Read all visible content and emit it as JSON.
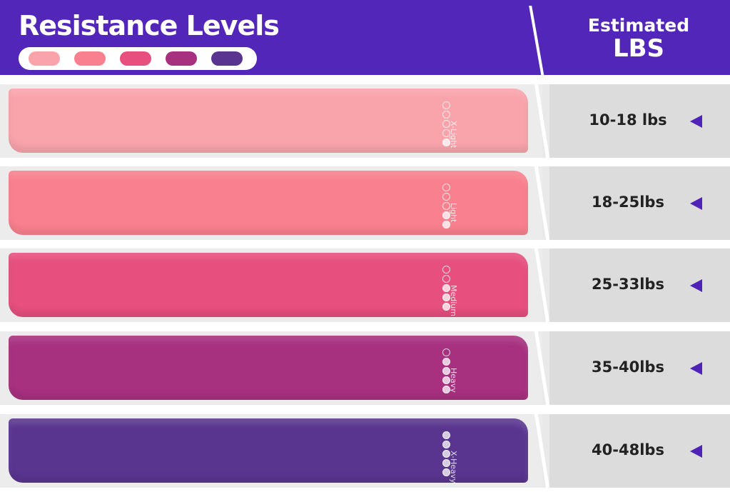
{
  "header": {
    "title": "Resistance Levels",
    "estimated": "Estimated",
    "unit": "LBS",
    "background_color": "#5226b8"
  },
  "swatches": [
    "#f9a3ab",
    "#f9808e",
    "#e64f7e",
    "#a7307f",
    "#5a3590"
  ],
  "bands": [
    {
      "label": "X-Light",
      "level": 1,
      "weight": "10-18 lbs",
      "color": "#f9a3ab"
    },
    {
      "label": "Light",
      "level": 2,
      "weight": "18-25lbs",
      "color": "#f9808e"
    },
    {
      "label": "Medium",
      "level": 3,
      "weight": "25-33lbs",
      "color": "#e64f7e"
    },
    {
      "label": "Heavy",
      "level": 4,
      "weight": "35-40lbs",
      "color": "#a7307f"
    },
    {
      "label": "X-Heavy",
      "level": 5,
      "weight": "40-48lbs",
      "color": "#5a3590"
    }
  ],
  "arrow_icon": "triangle-left-icon",
  "accent_color": "#4f22b8"
}
